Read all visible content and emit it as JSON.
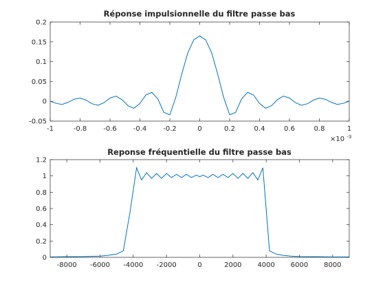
{
  "chart_data": [
    {
      "type": "line",
      "title": "Réponse impulsionnelle du filtre passe bas",
      "xlabel": "",
      "ylabel": "",
      "xlim": [
        -0.001,
        0.001
      ],
      "ylim": [
        -0.05,
        0.2
      ],
      "x_exponent_label": "×10",
      "x_exponent_power": "-3",
      "grid": false,
      "xticks": [
        -1,
        -0.8,
        -0.6,
        -0.4,
        -0.2,
        0,
        0.2,
        0.4,
        0.6,
        0.8,
        1
      ],
      "xtick_labels": [
        "-1",
        "-0.8",
        "-0.6",
        "-0.4",
        "-0.2",
        "0",
        "0.2",
        "0.4",
        "0.6",
        "0.8",
        "1"
      ],
      "yticks": [
        -0.05,
        0,
        0.05,
        0.1,
        0.15,
        0.2
      ],
      "ytick_labels": [
        "-0.05",
        "0",
        "0.05",
        "0.1",
        "0.15",
        "0.2"
      ],
      "series": [
        {
          "color": "#0072bd",
          "x": [
            -0.001,
            -0.00096,
            -0.00092,
            -0.00088,
            -0.00084,
            -0.0008,
            -0.00076,
            -0.00072,
            -0.00068,
            -0.00064,
            -0.0006,
            -0.00056,
            -0.00052,
            -0.00048,
            -0.00044,
            -0.0004,
            -0.00036,
            -0.00032,
            -0.00028,
            -0.00024,
            -0.0002,
            -0.00016,
            -0.00012,
            -8e-05,
            -4e-05,
            0,
            4e-05,
            8e-05,
            0.00012,
            0.00016,
            0.0002,
            0.00024,
            0.00028,
            0.00032,
            0.00036,
            0.0004,
            0.00044,
            0.00048,
            0.00052,
            0.00056,
            0.0006,
            0.00064,
            0.00068,
            0.00072,
            0.00076,
            0.0008,
            0.00084,
            0.00088,
            0.00092,
            0.00096,
            0.001
          ],
          "y": [
            0.0004,
            -0.0052,
            -0.0078,
            -0.0025,
            0.0052,
            0.0081,
            0.003,
            -0.0063,
            -0.01,
            -0.0035,
            0.0082,
            0.013,
            0.0042,
            -0.011,
            -0.0175,
            -0.0055,
            0.016,
            0.0225,
            0.006,
            -0.028,
            -0.034,
            0.01,
            0.069,
            0.122,
            0.155,
            0.165,
            0.155,
            0.122,
            0.069,
            0.01,
            -0.034,
            -0.028,
            0.006,
            0.0225,
            0.016,
            -0.0055,
            -0.0175,
            -0.011,
            0.0042,
            0.013,
            0.0082,
            -0.0035,
            -0.01,
            -0.0063,
            0.003,
            0.0081,
            0.0052,
            -0.0025,
            -0.0078,
            -0.0052,
            0.0004
          ]
        }
      ]
    },
    {
      "type": "line",
      "title": "Reponse fréquentielle du filtre passe bas",
      "xlabel": "",
      "ylabel": "",
      "xlim": [
        -9000,
        9000
      ],
      "ylim": [
        0,
        1.2
      ],
      "grid": false,
      "xticks": [
        -8000,
        -6000,
        -4000,
        -2000,
        0,
        2000,
        4000,
        6000,
        8000
      ],
      "xtick_labels": [
        "-8000",
        "-6000",
        "-4000",
        "-2000",
        "0",
        "2000",
        "4000",
        "6000",
        "8000"
      ],
      "yticks": [
        0,
        0.2,
        0.4,
        0.6,
        0.8,
        1,
        1.2
      ],
      "ytick_labels": [
        "0",
        "0.2",
        "0.4",
        "0.6",
        "0.8",
        "1",
        "1.2"
      ],
      "series": [
        {
          "color": "#0072bd",
          "x": [
            -9000,
            -8000,
            -7000,
            -6000,
            -5500,
            -5000,
            -4600,
            -4200,
            -3800,
            -3500,
            -3200,
            -2900,
            -2600,
            -2300,
            -2000,
            -1700,
            -1400,
            -1100,
            -800,
            -500,
            -200,
            0,
            200,
            500,
            800,
            1100,
            1400,
            1700,
            2000,
            2300,
            2600,
            2900,
            3200,
            3500,
            3800,
            4200,
            4600,
            5000,
            5500,
            6000,
            7000,
            8000,
            9000
          ],
          "y": [
            0.005,
            0.008,
            0.01,
            0.015,
            0.025,
            0.04,
            0.08,
            0.55,
            1.1,
            0.95,
            1.04,
            0.97,
            1.03,
            0.97,
            1.03,
            0.98,
            1.02,
            0.98,
            1.02,
            0.98,
            1.01,
            0.99,
            1.01,
            0.98,
            1.02,
            0.98,
            1.02,
            0.98,
            1.03,
            0.97,
            1.03,
            0.97,
            1.04,
            0.95,
            1.1,
            0.08,
            0.04,
            0.025,
            0.015,
            0.01,
            0.008,
            0.005,
            0.005
          ]
        }
      ]
    }
  ]
}
